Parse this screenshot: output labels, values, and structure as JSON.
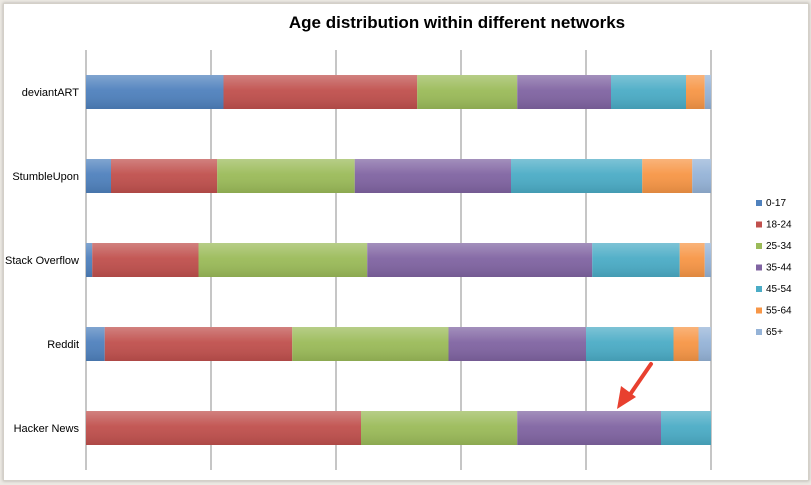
{
  "chart_data": {
    "type": "bar",
    "stacked": "percent",
    "orientation": "horizontal",
    "title": "Age distribution within different networks",
    "xlabel": "",
    "ylabel": "",
    "xlim": [
      0,
      100
    ],
    "grid": true,
    "legend_position": "right",
    "categories": [
      "deviantART",
      "StumbleUpon",
      "Stack Overflow",
      "Reddit",
      "Hacker News"
    ],
    "series": [
      {
        "name": "0-17",
        "color": "#4f81bd",
        "values": [
          22,
          4,
          1,
          3,
          0
        ]
      },
      {
        "name": "18-24",
        "color": "#c0504d",
        "values": [
          31,
          17,
          17,
          30,
          44
        ]
      },
      {
        "name": "25-34",
        "color": "#9bbb59",
        "values": [
          16,
          22,
          27,
          25,
          25
        ]
      },
      {
        "name": "35-44",
        "color": "#8064a2",
        "values": [
          15,
          25,
          36,
          22,
          23
        ]
      },
      {
        "name": "45-54",
        "color": "#4bacc6",
        "values": [
          12,
          21,
          14,
          14,
          8
        ]
      },
      {
        "name": "55-64",
        "color": "#f79646",
        "values": [
          3,
          8,
          4,
          4,
          0
        ]
      },
      {
        "name": "65+",
        "color": "#95b3d7",
        "values": [
          1,
          3,
          1,
          2,
          0
        ]
      }
    ],
    "annotation": {
      "type": "arrow",
      "color": "#e8402f",
      "points_to": "Hacker News"
    }
  }
}
